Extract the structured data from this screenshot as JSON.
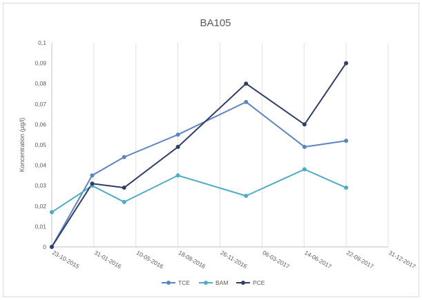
{
  "chart_data": {
    "type": "line",
    "title": "BA105",
    "ylabel": "Koncentration (µg/l)",
    "xlabel": "",
    "ylim": [
      0,
      0.1
    ],
    "y_ticks": [
      "0",
      "0,01",
      "0,02",
      "0,03",
      "0,04",
      "0,05",
      "0,06",
      "0,07",
      "0,08",
      "0,09",
      "0,1"
    ],
    "x_ticks": [
      "23-10-2015",
      "31-01-2016",
      "10-05-2016",
      "18-08-2016",
      "26-11-2016",
      "06-03-2017",
      "14-06-2017",
      "22-09-2017",
      "31-12-2017"
    ],
    "x_range": [
      "2015-10-23",
      "2017-12-31"
    ],
    "grid": "vertical",
    "legend": "bottom",
    "series": [
      {
        "name": "TCE",
        "color": "#5b84c4",
        "points": [
          {
            "x": "2015-10-23",
            "y": 0
          },
          {
            "x": "2016-01-27",
            "y": 0.035
          },
          {
            "x": "2016-04-12",
            "y": 0.044
          },
          {
            "x": "2016-08-18",
            "y": 0.055
          },
          {
            "x": "2017-01-27",
            "y": 0.071
          },
          {
            "x": "2017-06-15",
            "y": 0.049
          },
          {
            "x": "2017-09-22",
            "y": 0.052
          }
        ]
      },
      {
        "name": "BAM",
        "color": "#4bacc6",
        "points": [
          {
            "x": "2015-10-23",
            "y": 0.017
          },
          {
            "x": "2016-01-27",
            "y": 0.03
          },
          {
            "x": "2016-04-12",
            "y": 0.022
          },
          {
            "x": "2016-08-18",
            "y": 0.035
          },
          {
            "x": "2017-01-27",
            "y": 0.025
          },
          {
            "x": "2017-06-15",
            "y": 0.038
          },
          {
            "x": "2017-09-22",
            "y": 0.029
          }
        ]
      },
      {
        "name": "PCE",
        "color": "#2e3e6b",
        "points": [
          {
            "x": "2015-10-23",
            "y": 0
          },
          {
            "x": "2016-01-27",
            "y": 0.031
          },
          {
            "x": "2016-04-12",
            "y": 0.029
          },
          {
            "x": "2016-08-18",
            "y": 0.049
          },
          {
            "x": "2017-01-27",
            "y": 0.08
          },
          {
            "x": "2017-06-15",
            "y": 0.06
          },
          {
            "x": "2017-09-22",
            "y": 0.09
          }
        ]
      }
    ]
  }
}
